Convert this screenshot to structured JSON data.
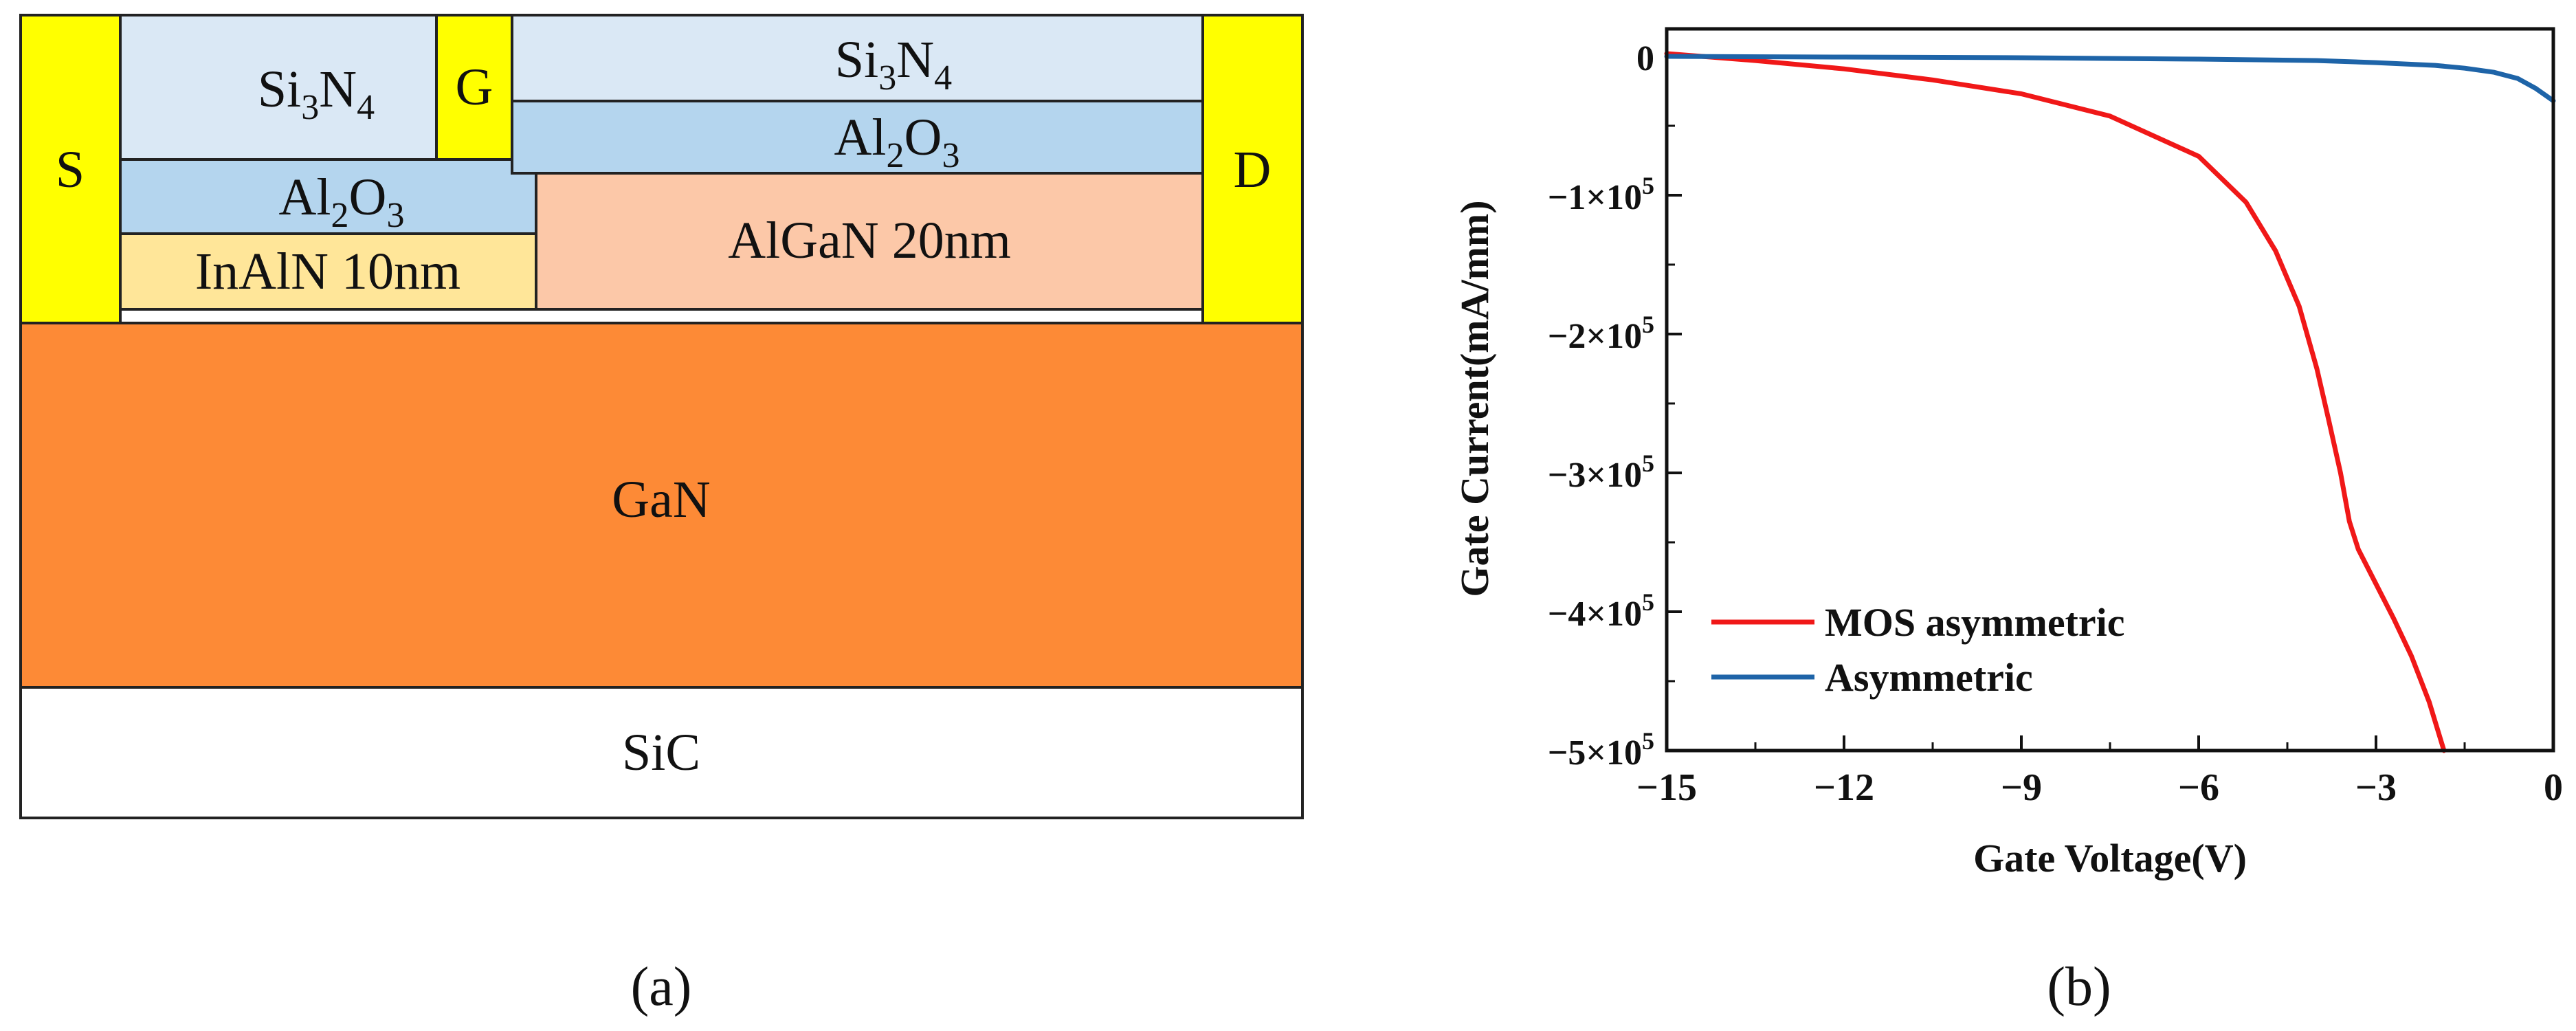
{
  "panel_a": {
    "caption": "(a)",
    "layers": {
      "si3n4_left": {
        "base": "Si",
        "sub1": "3",
        "mid": "N",
        "sub2": "4"
      },
      "si3n4_right": {
        "base": "Si",
        "sub1": "3",
        "mid": "N",
        "sub2": "4"
      },
      "al2o3_left": {
        "base": "Al",
        "sub1": "2",
        "mid": "O",
        "sub2": "3"
      },
      "al2o3_right": {
        "base": "Al",
        "sub1": "2",
        "mid": "O",
        "sub2": "3"
      },
      "inaln": "InAlN 10nm",
      "algan": "AlGaN 20nm",
      "gan": "GaN",
      "sic": "SiC"
    },
    "contacts": {
      "source": "S",
      "gate": "G",
      "drain": "D"
    },
    "colors": {
      "contact": "#ffff00",
      "si3n4": "#dae8f5",
      "al2o3": "#b4d5ee",
      "inaln": "#ffe699",
      "algan": "#fcc8a8",
      "gan": "#fd8a36",
      "sic": "#ffffff"
    }
  },
  "panel_b": {
    "caption": "(b)"
  },
  "chart_data": {
    "type": "line",
    "xlabel": "Gate Voltage(V)",
    "ylabel": "Gate Current(mA/mm)",
    "xlim": [
      -15,
      0
    ],
    "ylim": [
      -500000,
      20000
    ],
    "x_ticks": [
      -15,
      -12,
      -9,
      -6,
      -3,
      0
    ],
    "x_tick_labels": [
      "−15",
      "−12",
      "−9",
      "−6",
      "−3",
      "0"
    ],
    "y_ticks": [
      0,
      -100000,
      -200000,
      -300000,
      -400000,
      -500000
    ],
    "y_tick_labels": [
      {
        "main": "0",
        "exp": ""
      },
      {
        "main": "−1×10",
        "exp": "5"
      },
      {
        "main": "−2×10",
        "exp": "5"
      },
      {
        "main": "−3×10",
        "exp": "5"
      },
      {
        "main": "−4×10",
        "exp": "5"
      },
      {
        "main": "−5×10",
        "exp": "5"
      }
    ],
    "legend_position": "bottom-left",
    "series": [
      {
        "name": "MOS  asymmetric",
        "color": "#f01818",
        "x": [
          -15,
          -13.5,
          -12,
          -10.5,
          -9,
          -7.5,
          -6,
          -5.2,
          -4.7,
          -4.3,
          -4.0,
          -3.8,
          -3.6,
          -3.45,
          -3.3,
          -3.0,
          -2.7,
          -2.4,
          -2.1,
          -1.85
        ],
        "y": [
          2000,
          -3000,
          -9000,
          -17000,
          -27000,
          -43000,
          -72000,
          -105000,
          -140000,
          -180000,
          -225000,
          -262000,
          -300000,
          -335000,
          -355000,
          -380000,
          -405000,
          -432000,
          -465000,
          -500000
        ]
      },
      {
        "name": "Asymmetric",
        "color": "#1e64a8",
        "x": [
          -15,
          -12,
          -9,
          -6,
          -4,
          -3,
          -2,
          -1.5,
          -1,
          -0.6,
          -0.3,
          0
        ],
        "y": [
          0,
          -500,
          -1000,
          -2000,
          -3000,
          -4500,
          -6500,
          -8500,
          -11500,
          -16000,
          -23000,
          -32000
        ]
      }
    ]
  }
}
